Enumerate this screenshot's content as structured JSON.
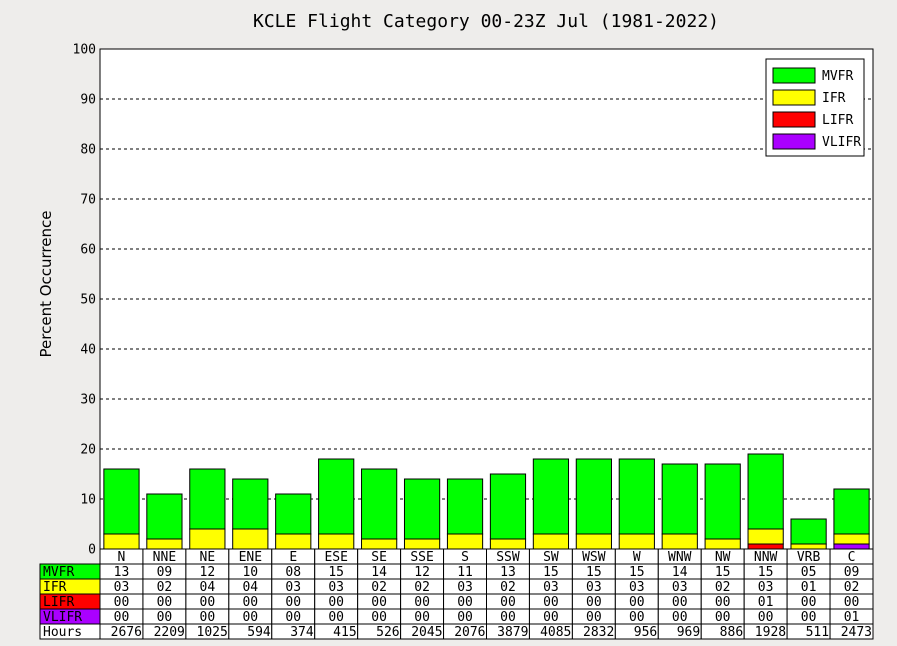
{
  "chart_data": {
    "type": "bar",
    "stacked": true,
    "title": "KCLE Flight Category 00-23Z Jul (1981-2022)",
    "ylabel": "Percent Occurrence",
    "ylim": [
      0,
      100
    ],
    "yticks": [
      "0",
      "10",
      "20",
      "30",
      "40",
      "50",
      "60",
      "70",
      "80",
      "90",
      "100"
    ],
    "grid": true,
    "legend_position": "top-right",
    "categories": [
      "N",
      "NNE",
      "NE",
      "ENE",
      "E",
      "ESE",
      "SE",
      "SSE",
      "S",
      "SSW",
      "SW",
      "WSW",
      "W",
      "WNW",
      "NW",
      "NNW",
      "VRB",
      "C"
    ],
    "series": [
      {
        "name": "MVFR",
        "color": "#00ff00",
        "values": [
          13,
          9,
          12,
          10,
          8,
          15,
          14,
          12,
          11,
          13,
          15,
          15,
          15,
          14,
          15,
          15,
          5,
          9
        ]
      },
      {
        "name": "IFR",
        "color": "#ffff00",
        "values": [
          3,
          2,
          4,
          4,
          3,
          3,
          2,
          2,
          3,
          2,
          3,
          3,
          3,
          3,
          2,
          3,
          1,
          2
        ]
      },
      {
        "name": "LIFR",
        "color": "#ff0000",
        "values": [
          0,
          0,
          0,
          0,
          0,
          0,
          0,
          0,
          0,
          0,
          0,
          0,
          0,
          0,
          0,
          1,
          0,
          0
        ]
      },
      {
        "name": "VLIFR",
        "color": "#aa00ff",
        "values": [
          0,
          0,
          0,
          0,
          0,
          0,
          0,
          0,
          0,
          0,
          0,
          0,
          0,
          0,
          0,
          0,
          0,
          1
        ]
      }
    ],
    "stack_order_bottom_up": [
      "VLIFR",
      "LIFR",
      "IFR",
      "MVFR"
    ],
    "legend_order": [
      "MVFR",
      "IFR",
      "LIFR",
      "VLIFR"
    ],
    "table": {
      "rows": [
        {
          "label": "MVFR",
          "color": "#00ff00",
          "values": [
            "13",
            "09",
            "12",
            "10",
            "08",
            "15",
            "14",
            "12",
            "11",
            "13",
            "15",
            "15",
            "15",
            "14",
            "15",
            "15",
            "05",
            "09"
          ]
        },
        {
          "label": "IFR",
          "color": "#ffff00",
          "values": [
            "03",
            "02",
            "04",
            "04",
            "03",
            "03",
            "02",
            "02",
            "03",
            "02",
            "03",
            "03",
            "03",
            "03",
            "02",
            "03",
            "01",
            "02"
          ]
        },
        {
          "label": "LIFR",
          "color": "#ff0000",
          "values": [
            "00",
            "00",
            "00",
            "00",
            "00",
            "00",
            "00",
            "00",
            "00",
            "00",
            "00",
            "00",
            "00",
            "00",
            "00",
            "01",
            "00",
            "00"
          ]
        },
        {
          "label": "VLIFR",
          "color": "#aa00ff",
          "values": [
            "00",
            "00",
            "00",
            "00",
            "00",
            "00",
            "00",
            "00",
            "00",
            "00",
            "00",
            "00",
            "00",
            "00",
            "00",
            "00",
            "00",
            "01"
          ]
        },
        {
          "label": "Hours",
          "color": "#ffffff",
          "values": [
            "2676",
            "2209",
            "1025",
            "594",
            "374",
            "415",
            "526",
            "2045",
            "2076",
            "3879",
            "4085",
            "2832",
            "956",
            "969",
            "886",
            "1928",
            "511",
            "2473"
          ]
        }
      ]
    }
  }
}
